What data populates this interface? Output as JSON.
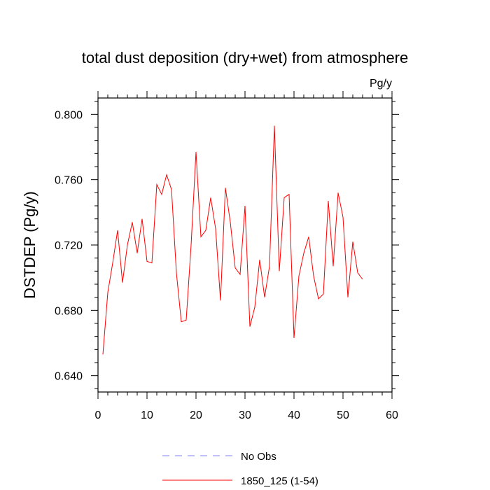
{
  "chart_data": {
    "type": "line",
    "title": "total dust deposition (dry+wet) from atmosphere",
    "units_label": "Pg/y",
    "ylabel": "DSTDEP  (Pg/y)",
    "xlabel": "",
    "xlim": [
      0,
      60
    ],
    "ylim": [
      0.63,
      0.81
    ],
    "xticks": [
      0,
      10,
      20,
      30,
      40,
      50,
      60
    ],
    "xtick_labels": [
      "0",
      "10",
      "20",
      "30",
      "40",
      "50",
      "60"
    ],
    "yticks": [
      0.64,
      0.68,
      0.72,
      0.76,
      0.8
    ],
    "ytick_labels": [
      "0.640",
      "0.680",
      "0.720",
      "0.760",
      "0.800"
    ],
    "grid": false,
    "legend_position": "bottom",
    "series": [
      {
        "name": "No Obs",
        "color": "#8080ff",
        "dash": "dashed",
        "x": [],
        "values": []
      },
      {
        "name": "1850_125 (1-54)",
        "color": "#ff0000",
        "dash": "solid",
        "x": [
          1,
          2,
          3,
          4,
          5,
          6,
          7,
          8,
          9,
          10,
          11,
          12,
          13,
          14,
          15,
          16,
          17,
          18,
          19,
          20,
          21,
          22,
          23,
          24,
          25,
          26,
          27,
          28,
          29,
          30,
          31,
          32,
          33,
          34,
          35,
          36,
          37,
          38,
          39,
          40,
          41,
          42,
          43,
          44,
          45,
          46,
          47,
          48,
          49,
          50,
          51,
          52,
          53,
          54
        ],
        "values": [
          0.653,
          0.691,
          0.709,
          0.729,
          0.697,
          0.72,
          0.734,
          0.715,
          0.736,
          0.71,
          0.709,
          0.757,
          0.751,
          0.763,
          0.754,
          0.703,
          0.673,
          0.674,
          0.72,
          0.777,
          0.725,
          0.729,
          0.749,
          0.73,
          0.686,
          0.755,
          0.734,
          0.706,
          0.702,
          0.744,
          0.67,
          0.682,
          0.711,
          0.688,
          0.707,
          0.793,
          0.704,
          0.749,
          0.751,
          0.663,
          0.701,
          0.715,
          0.725,
          0.701,
          0.687,
          0.69,
          0.747,
          0.707,
          0.752,
          0.737,
          0.688,
          0.722,
          0.703,
          0.699
        ]
      }
    ]
  }
}
